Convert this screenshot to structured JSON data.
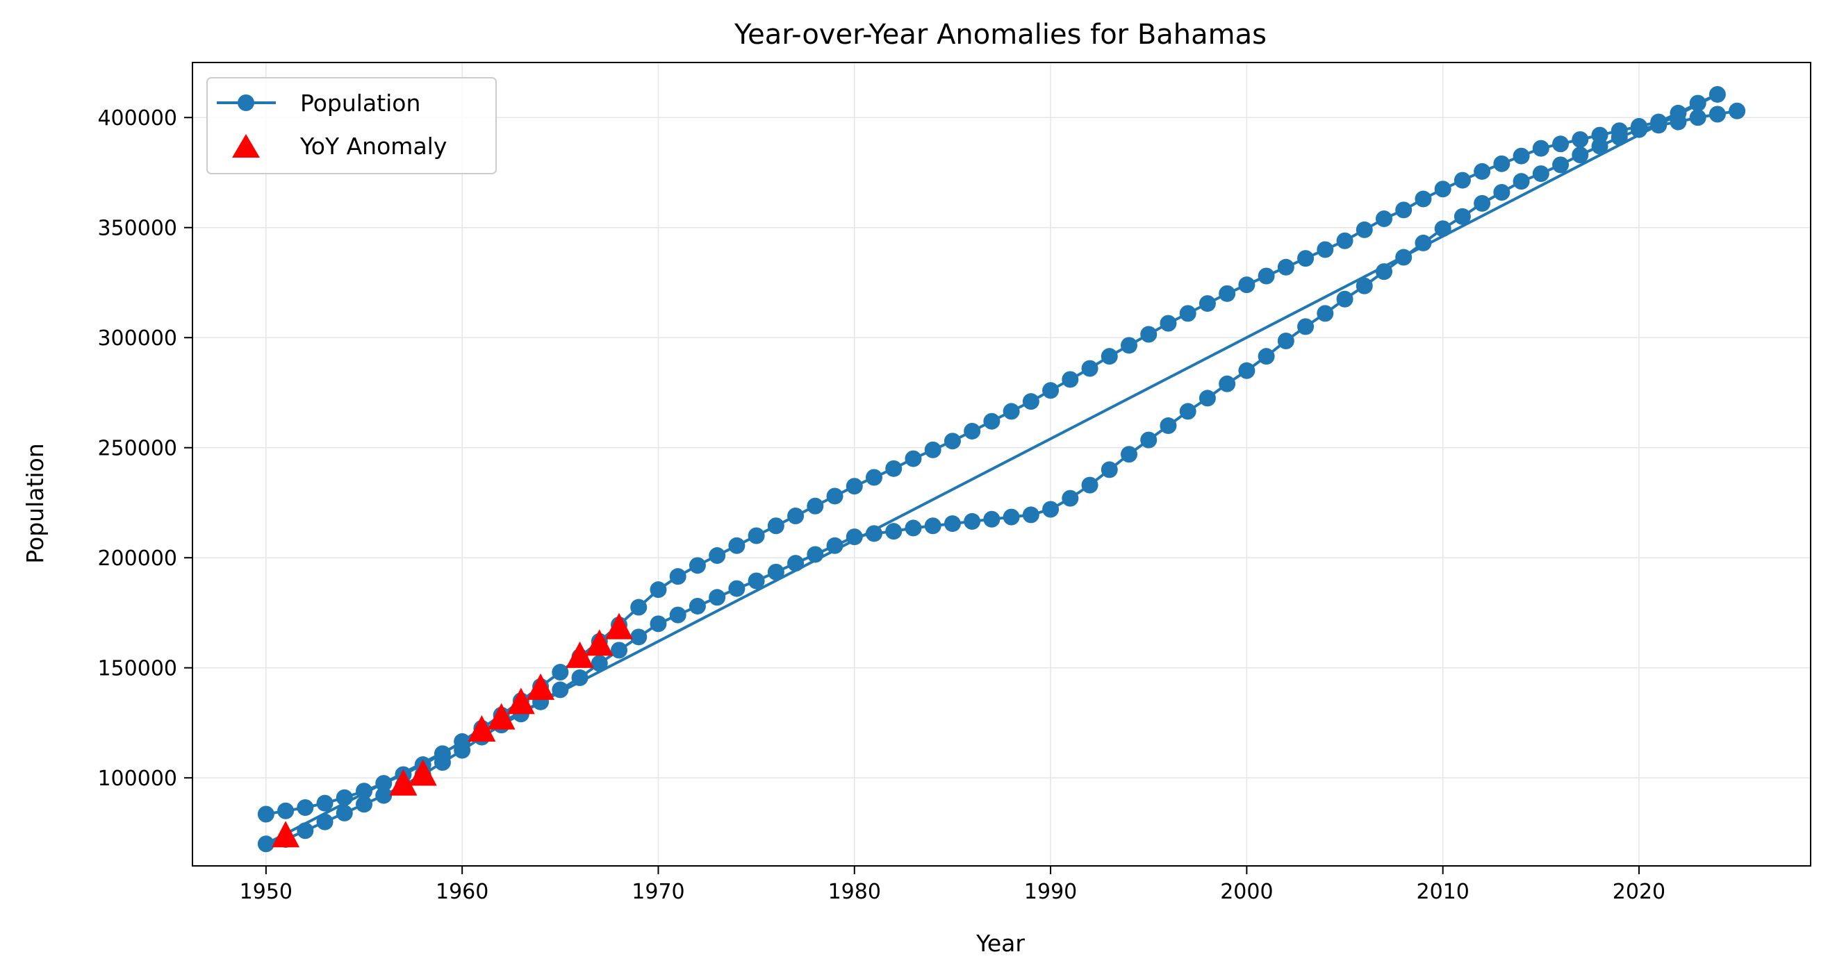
{
  "chart_data": {
    "type": "line",
    "title": "Year-over-Year Anomalies for Bahamas",
    "xlabel": "Year",
    "ylabel": "Population",
    "xlim": [
      1946.25,
      2028.75
    ],
    "ylim": [
      60000,
      425000
    ],
    "xticks": [
      1950,
      1960,
      1970,
      1980,
      1990,
      2000,
      2010,
      2020
    ],
    "yticks": [
      100000,
      150000,
      200000,
      250000,
      300000,
      350000,
      400000
    ],
    "grid": true,
    "legend_position": "upper-left",
    "colors": {
      "series": "#1f77b4",
      "anomaly": "#ff0000",
      "grid": "#e6e6e6"
    },
    "series": [
      {
        "name": "Population",
        "style": "line-with-circle-markers",
        "x": [
          1950,
          1951,
          1952,
          1953,
          1954,
          1955,
          1956,
          1957,
          1958,
          1959,
          1960,
          1961,
          1962,
          1963,
          1964,
          1965,
          1966,
          1967,
          1968,
          1969,
          1970,
          1971,
          1972,
          1973,
          1974,
          1975,
          1976,
          1977,
          1978,
          1979,
          1980,
          1981,
          1982,
          1983,
          1984,
          1985,
          1986,
          1987,
          1988,
          1989,
          1990,
          1991,
          1992,
          1993,
          1994,
          1995,
          1996,
          1997,
          1998,
          1999,
          2000,
          2001,
          2002,
          2003,
          2004,
          2005,
          2006,
          2007,
          2008,
          2009,
          2010,
          2011,
          2012,
          2013,
          2014,
          2015,
          2016,
          2017,
          2018,
          2019,
          2020,
          2021,
          2022,
          2023,
          2024,
          1950,
          1951,
          1952,
          1953,
          1954,
          1955,
          1956,
          1957,
          1958,
          1959,
          1960,
          1961,
          1962,
          1963,
          1964,
          1965,
          1966,
          1967,
          1968,
          1969,
          1970,
          1971,
          1972,
          1973,
          1974,
          1975,
          1976,
          1977,
          1978,
          1979,
          1980,
          1981,
          1982,
          1983,
          1984,
          1985,
          1986,
          1987,
          1988,
          1989,
          1990,
          1991,
          1992,
          1993,
          1994,
          1995,
          1996,
          1997,
          1998,
          1999,
          2000,
          2001,
          2002,
          2003,
          2004,
          2005,
          2006,
          2007,
          2008,
          2009,
          2010,
          2011,
          2012,
          2013,
          2014,
          2015,
          2016,
          2017,
          2018,
          2019,
          2020,
          2021,
          2022,
          2023,
          2024,
          2025
        ],
        "y": [
          83500,
          85000,
          86500,
          88500,
          91000,
          94000,
          97500,
          101500,
          106000,
          111000,
          116500,
          122500,
          128500,
          135000,
          141500,
          148000,
          155000,
          162000,
          169500,
          177500,
          185500,
          191500,
          196500,
          201000,
          205500,
          210000,
          214500,
          219000,
          223500,
          228000,
          232500,
          236500,
          240500,
          245000,
          249000,
          253000,
          257500,
          262000,
          266500,
          271000,
          276000,
          281000,
          286000,
          291500,
          296500,
          301500,
          306500,
          311000,
          315500,
          320000,
          324000,
          328000,
          332000,
          336000,
          340000,
          344000,
          349000,
          354000,
          358000,
          363000,
          367500,
          371500,
          375500,
          379000,
          382500,
          386000,
          388000,
          390000,
          392000,
          394000,
          396000,
          398000,
          402000,
          406500,
          410500,
          70000,
          72000,
          76000,
          80000,
          84000,
          88000,
          92000,
          96500,
          101500,
          107000,
          112500,
          118500,
          124000,
          129000,
          134500,
          140000,
          145500,
          152000,
          158000,
          164000,
          170000,
          174000,
          178000,
          182000,
          186000,
          189500,
          193500,
          197500,
          201500,
          205500,
          209500,
          211000,
          212000,
          213500,
          214500,
          215500,
          216500,
          217500,
          218500,
          219500,
          222000,
          227000,
          233000,
          240000,
          247000,
          253500,
          260000,
          266500,
          272500,
          279000,
          285000,
          291500,
          298500,
          305000,
          311000,
          317500,
          323500,
          330000,
          336500,
          343000,
          349500,
          355000,
          361000,
          366000,
          371000,
          374500,
          378500,
          383000,
          387000,
          391000,
          394500,
          396500,
          398000,
          400000,
          401500,
          403000
        ]
      },
      {
        "name": "YoY Anomaly",
        "style": "red-triangle-markers",
        "x": [
          1951,
          1957,
          1958,
          1961,
          1962,
          1963,
          1964,
          1966,
          1967,
          1968
        ],
        "y": [
          73500,
          97000,
          101500,
          121500,
          127000,
          134000,
          140500,
          155000,
          160500,
          168000
        ]
      }
    ]
  }
}
